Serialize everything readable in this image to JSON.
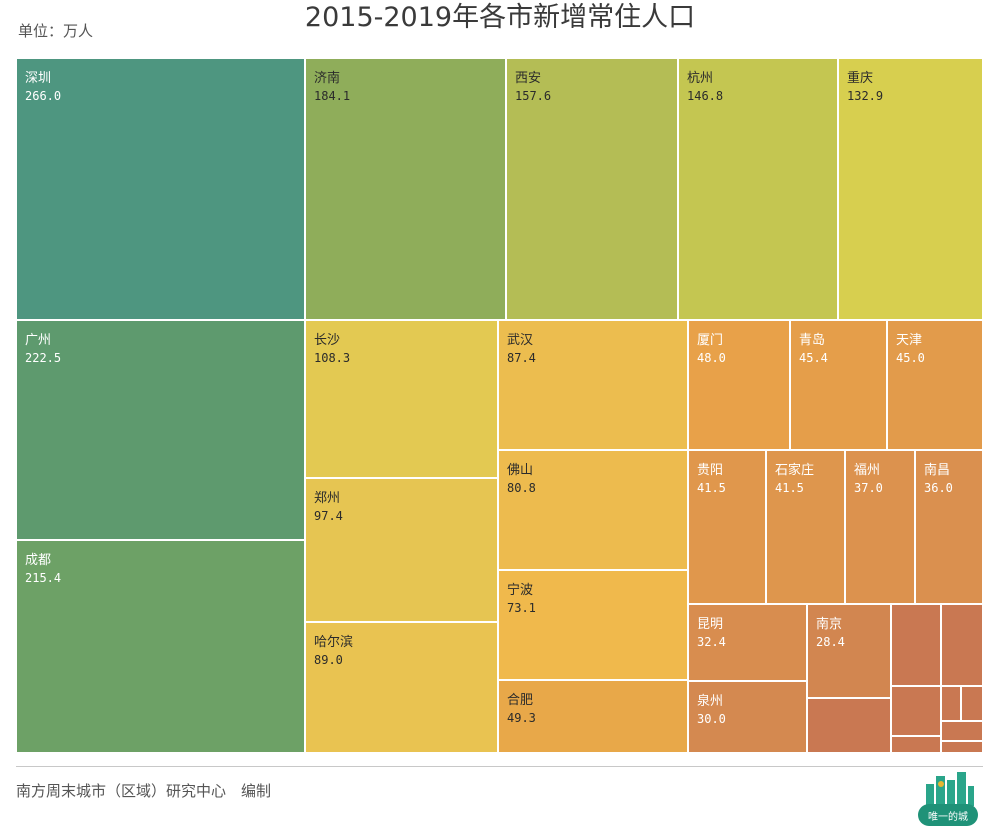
{
  "header": {
    "title": "2015-2019年各市新增常住人口",
    "unit": "单位：万人"
  },
  "footer": {
    "credit": "南方周末城市（区域）研究中心　编制",
    "logo_text": "唯一的城"
  },
  "chart_data": {
    "type": "treemap",
    "title": "2015-2019年各市新增常住人口",
    "unit": "万人",
    "items": [
      {
        "name": "深圳",
        "value": 266.0,
        "color": "#4e9680"
      },
      {
        "name": "广州",
        "value": 222.5,
        "color": "#5e9a6e"
      },
      {
        "name": "成都",
        "value": 215.4,
        "color": "#6da166"
      },
      {
        "name": "济南",
        "value": 184.1,
        "color": "#8fad5a"
      },
      {
        "name": "西安",
        "value": 157.6,
        "color": "#b4bd55"
      },
      {
        "name": "杭州",
        "value": 146.8,
        "color": "#c4c651"
      },
      {
        "name": "重庆",
        "value": 132.9,
        "color": "#d7cf4f"
      },
      {
        "name": "长沙",
        "value": 108.3,
        "color": "#e3c952"
      },
      {
        "name": "郑州",
        "value": 97.4,
        "color": "#e6c552"
      },
      {
        "name": "哈尔滨",
        "value": 89.0,
        "color": "#e9c351"
      },
      {
        "name": "武汉",
        "value": 87.4,
        "color": "#ecbd4f"
      },
      {
        "name": "佛山",
        "value": 80.8,
        "color": "#edbb4e"
      },
      {
        "name": "宁波",
        "value": 73.1,
        "color": "#f0b94c"
      },
      {
        "name": "合肥",
        "value": 49.3,
        "color": "#e8a849"
      },
      {
        "name": "厦门",
        "value": 48.0,
        "color": "#e8a149"
      },
      {
        "name": "青岛",
        "value": 45.4,
        "color": "#e59e4a"
      },
      {
        "name": "天津",
        "value": 45.0,
        "color": "#e29b4b"
      },
      {
        "name": "贵阳",
        "value": 41.5,
        "color": "#e0974c"
      },
      {
        "name": "石家庄",
        "value": 41.5,
        "color": "#de964d"
      },
      {
        "name": "福州",
        "value": 37.0,
        "color": "#dc924e"
      },
      {
        "name": "南昌",
        "value": 36.0,
        "color": "#da904f"
      },
      {
        "name": "昆明",
        "value": 32.4,
        "color": "#d88d4f"
      },
      {
        "name": "泉州",
        "value": 30.0,
        "color": "#d48950"
      },
      {
        "name": "南京",
        "value": 28.4,
        "color": "#d28650"
      }
    ],
    "unlabeled_color": "#c97852"
  }
}
